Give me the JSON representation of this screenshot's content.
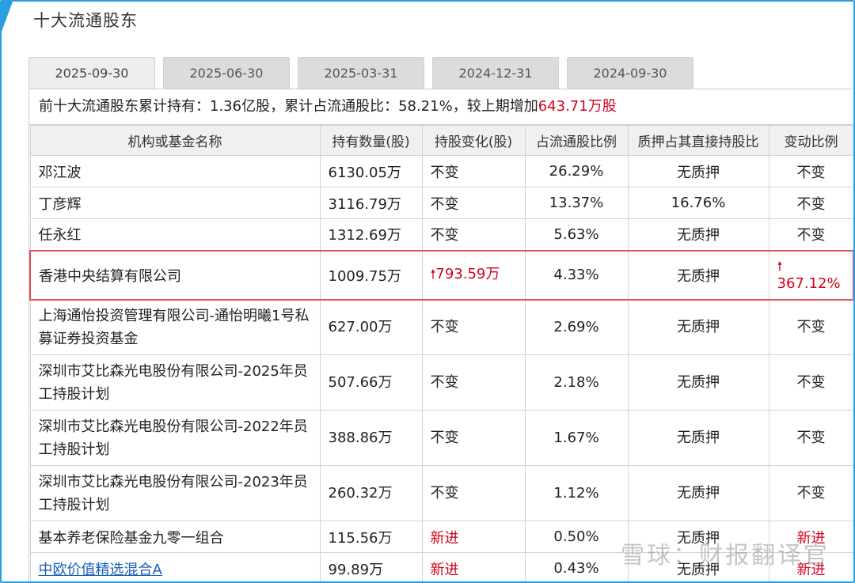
{
  "section_title": "十大流通股东",
  "tabs": [
    "2025-09-30",
    "2025-06-30",
    "2025-03-31",
    "2024-12-31",
    "2024-09-30"
  ],
  "summary": {
    "prefix": "前十大流通股东累计持有：1.36亿股，累计占流通股比：58.21%，较上期增加",
    "increase": "643.71万股"
  },
  "columns": [
    "机构或基金名称",
    "持有数量(股)",
    "持股变化(股)",
    "占流通股比例",
    "质押占其直接持股比",
    "变动比例"
  ],
  "rows": [
    {
      "name": "邓江波",
      "shares": "6130.05万",
      "change": "不变",
      "ratio": "26.29%",
      "pledge": "无质押",
      "chg_ratio": "不变"
    },
    {
      "name": "丁彦辉",
      "shares": "3116.79万",
      "change": "不变",
      "ratio": "13.37%",
      "pledge": "16.76%",
      "chg_ratio": "不变"
    },
    {
      "name": "任永红",
      "shares": "1312.69万",
      "change": "不变",
      "ratio": "5.63%",
      "pledge": "无质押",
      "chg_ratio": "不变"
    },
    {
      "name": "香港中央结算有限公司",
      "shares": "1009.75万",
      "change": "793.59万",
      "ratio": "4.33%",
      "pledge": "无质押",
      "chg_ratio": "367.12%"
    },
    {
      "name": "上海通怡投资管理有限公司-通怡明曦1号私募证券投资基金",
      "shares": "627.00万",
      "change": "不变",
      "ratio": "2.69%",
      "pledge": "无质押",
      "chg_ratio": "不变"
    },
    {
      "name": "深圳市艾比森光电股份有限公司-2025年员工持股计划",
      "shares": "507.66万",
      "change": "不变",
      "ratio": "2.18%",
      "pledge": "无质押",
      "chg_ratio": "不变"
    },
    {
      "name": "深圳市艾比森光电股份有限公司-2022年员工持股计划",
      "shares": "388.86万",
      "change": "不变",
      "ratio": "1.67%",
      "pledge": "无质押",
      "chg_ratio": "不变"
    },
    {
      "name": "深圳市艾比森光电股份有限公司-2023年员工持股计划",
      "shares": "260.32万",
      "change": "不变",
      "ratio": "1.12%",
      "pledge": "无质押",
      "chg_ratio": "不变"
    },
    {
      "name": "基本养老保险基金九零一组合",
      "shares": "115.56万",
      "change": "新进",
      "ratio": "0.50%",
      "pledge": "无质押",
      "chg_ratio": "新进"
    },
    {
      "name": "中欧价值精选混合A",
      "shares": "99.89万",
      "change": "新进",
      "ratio": "0.43%",
      "pledge": "无质押",
      "chg_ratio": "新进"
    }
  ],
  "up_arrow": "🠕",
  "watermark": "雪球：财报翻译官",
  "colors": {
    "border": "#2a9fe0",
    "red": "#d0021b",
    "highlight": "#e0545c",
    "link": "#1a5fb4"
  }
}
